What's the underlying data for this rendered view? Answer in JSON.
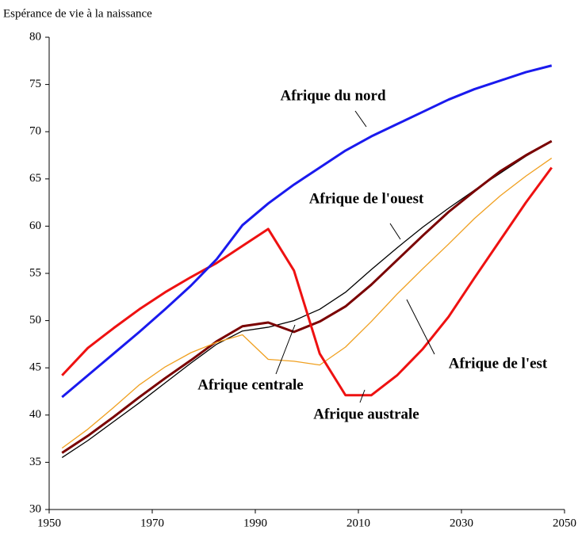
{
  "chart_data": {
    "type": "line",
    "title": "Espérance de vie à la naissance",
    "x": [
      1952.5,
      1957.5,
      1962.5,
      1967.5,
      1972.5,
      1977.5,
      1982.5,
      1987.5,
      1992.5,
      1997.5,
      2002.5,
      2007.5,
      2012.5,
      2017.5,
      2022.5,
      2027.5,
      2032.5,
      2037.5,
      2042.5,
      2047.5
    ],
    "series": [
      {
        "name": "Afrique de l'ouest",
        "color": "#000000",
        "values": [
          35.5,
          37.3,
          39.3,
          41.3,
          43.4,
          45.5,
          47.5,
          48.9,
          49.3,
          50.0,
          51.2,
          53.0,
          55.4,
          57.7,
          59.9,
          61.9,
          63.8,
          65.6,
          67.4,
          69.0
        ]
      },
      {
        "name": "Afrique centrale",
        "color": "#7a0000",
        "values": [
          36.0,
          37.8,
          39.8,
          41.9,
          43.9,
          45.8,
          47.8,
          49.4,
          49.8,
          48.8,
          49.9,
          51.5,
          53.8,
          56.4,
          59.0,
          61.5,
          63.7,
          65.8,
          67.5,
          69.0
        ]
      },
      {
        "name": "Afrique de l'est",
        "color": "#f0a020",
        "values": [
          36.5,
          38.5,
          40.8,
          43.2,
          45.1,
          46.6,
          47.7,
          48.5,
          45.9,
          45.7,
          45.3,
          47.2,
          49.9,
          52.8,
          55.5,
          58.1,
          60.8,
          63.2,
          65.3,
          67.2
        ]
      },
      {
        "name": "Afrique australe",
        "color": "#ee1111",
        "values": [
          44.2,
          47.1,
          49.2,
          51.2,
          53.0,
          54.6,
          56.1,
          57.9,
          59.7,
          55.3,
          46.5,
          42.1,
          42.1,
          44.2,
          47.0,
          50.4,
          54.5,
          58.5,
          62.5,
          66.2
        ]
      },
      {
        "name": "Afrique du nord",
        "color": "#1a1aee",
        "values": [
          41.9,
          44.2,
          46.5,
          48.8,
          51.2,
          53.7,
          56.5,
          60.1,
          62.4,
          64.4,
          66.2,
          68.0,
          69.5,
          70.8,
          72.1,
          73.4,
          74.5,
          75.4,
          76.3,
          77.0
        ]
      }
    ],
    "xlim": [
      1950,
      2050
    ],
    "xticks": [
      1950,
      1970,
      1990,
      2010,
      2030,
      2050
    ],
    "ylim": [
      30,
      80
    ],
    "yticks": [
      30,
      35,
      40,
      45,
      50,
      55,
      60,
      65,
      70,
      75,
      80
    ]
  }
}
